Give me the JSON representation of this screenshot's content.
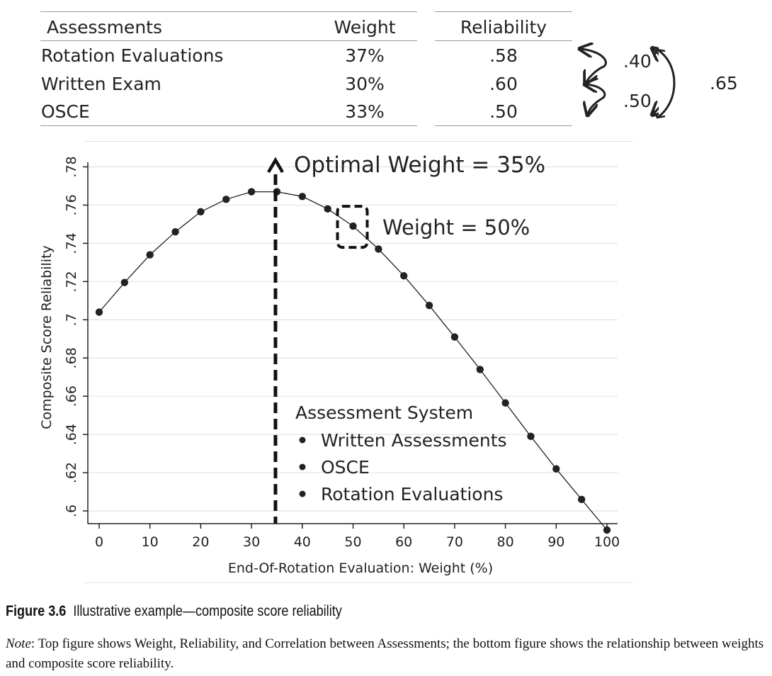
{
  "table": {
    "headers": {
      "assessment": "Assessments",
      "weight": "Weight",
      "reliability": "Reliability"
    },
    "rows": [
      {
        "assessment": "Rotation Evaluations",
        "weight": "37%",
        "reliability": ".58"
      },
      {
        "assessment": "Written Exam",
        "weight": "30%",
        "reliability": ".60"
      },
      {
        "assessment": "OSCE",
        "weight": "33%",
        "reliability": ".50"
      }
    ],
    "correlations": {
      "rotation_written": ".40",
      "written_osce": ".50",
      "rotation_osce": ".65"
    }
  },
  "chart_data": {
    "type": "line",
    "title": "",
    "xlabel": "End-Of-Rotation Evaluation: Weight (%)",
    "ylabel": "Composite Score Reliability",
    "x": [
      0,
      5,
      10,
      15,
      20,
      25,
      30,
      35,
      40,
      45,
      50,
      55,
      60,
      65,
      70,
      75,
      80,
      85,
      90,
      95,
      100
    ],
    "series": [
      {
        "name": "Composite Score Reliability",
        "values": [
          0.704,
          0.7195,
          0.734,
          0.746,
          0.7565,
          0.763,
          0.767,
          0.767,
          0.7645,
          0.758,
          0.749,
          0.737,
          0.723,
          0.7075,
          0.691,
          0.674,
          0.6565,
          0.639,
          0.622,
          0.606,
          0.59
        ]
      }
    ],
    "xlim": [
      0,
      100
    ],
    "ylim": [
      0.59,
      0.785
    ],
    "xticks": [
      0,
      10,
      20,
      30,
      40,
      50,
      60,
      70,
      80,
      90,
      100
    ],
    "xtick_labels": [
      "0",
      "10",
      "20",
      "30",
      "40",
      "50",
      "60",
      "70",
      "80",
      "90",
      "100"
    ],
    "yticks": [
      0.6,
      0.62,
      0.64,
      0.66,
      0.68,
      0.7,
      0.72,
      0.74,
      0.76,
      0.78
    ],
    "ytick_labels": [
      ".6",
      ".62",
      ".64",
      ".66",
      ".68",
      ".7",
      ".72",
      ".74",
      ".76",
      ".78"
    ],
    "grid": true,
    "annotations": {
      "optimal": {
        "x": 35,
        "label": "Optimal Weight = 35%"
      },
      "highlight": {
        "x": 50,
        "label": "Weight = 50%"
      }
    },
    "legend": {
      "title": "Assessment System",
      "items": [
        "Written Assessments",
        "OSCE",
        "Rotation Evaluations"
      ]
    }
  },
  "caption": {
    "figure_label": "Figure 3.6",
    "figure_text": "Illustrative example—composite score reliability",
    "note_label": "Note",
    "note_text": ": Top figure shows Weight, Reliability, and Correlation between Assessments; the bottom figure shows the relationship between weights and composite score reliability."
  }
}
